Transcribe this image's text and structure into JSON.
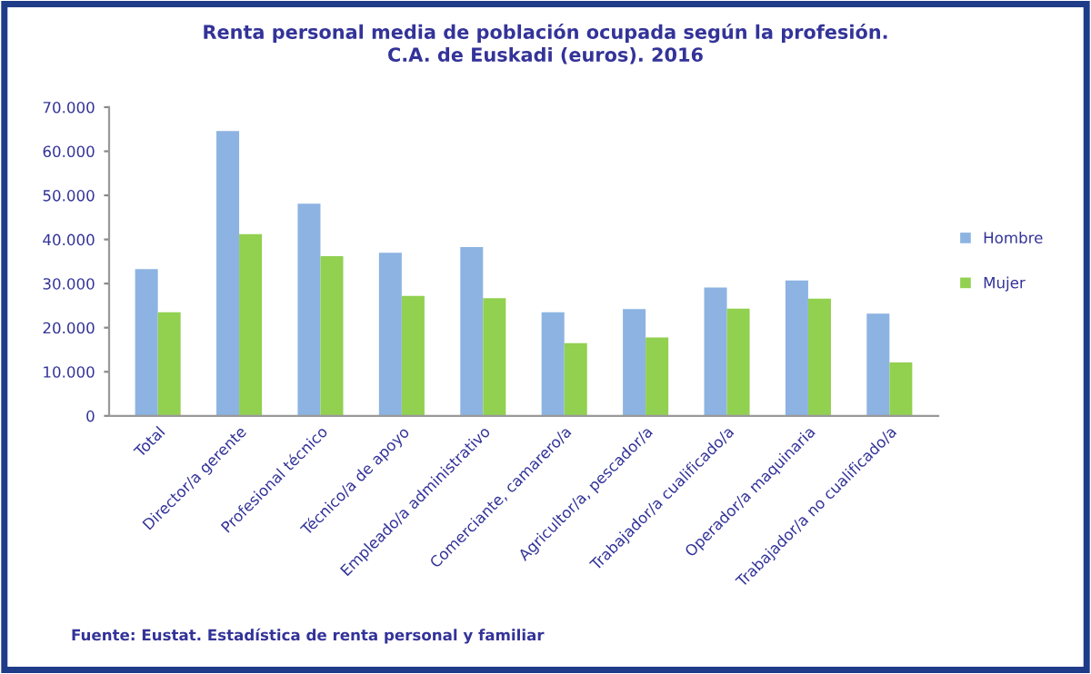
{
  "chart_data": {
    "type": "bar",
    "title": "Renta personal media de población ocupada según la profesión.\nC.A. de Euskadi (euros). 2016",
    "categories": [
      "Total",
      "Director/a gerente",
      "Profesional técnico",
      "Técnico/a de apoyo",
      "Empleado/a administrativo",
      "Comerciante, camarero/a",
      "Agricultor/a, pescador/a",
      "Trabajador/a cualificado/a",
      "Operador/a maquinaria",
      "Trabajador/a no cualificado/a"
    ],
    "series": [
      {
        "name": "Hombre",
        "color": "#8db3e2",
        "values": [
          33300,
          64600,
          48100,
          37000,
          38300,
          23500,
          24200,
          29100,
          30700,
          23200
        ]
      },
      {
        "name": "Mujer",
        "color": "#92d050",
        "values": [
          23500,
          41200,
          36200,
          27200,
          26700,
          16500,
          17800,
          24300,
          26600,
          12100
        ]
      }
    ],
    "ylim": [
      0,
      70000
    ],
    "yticks": [
      0,
      {
        "value": 10000,
        "label": "10.000"
      },
      {
        "value": 20000,
        "label": "20.000"
      },
      {
        "value": 30000,
        "label": "30.000"
      },
      {
        "value": 40000,
        "label": "40.000"
      },
      {
        "value": 50000,
        "label": "50.000"
      },
      {
        "value": 60000,
        "label": "60.000"
      },
      {
        "value": 70000,
        "label": "70.000"
      }
    ],
    "grid": false,
    "legend": "right",
    "annotations": [
      "Fuente: Eustat. Estadística de renta personal y familiar"
    ]
  }
}
